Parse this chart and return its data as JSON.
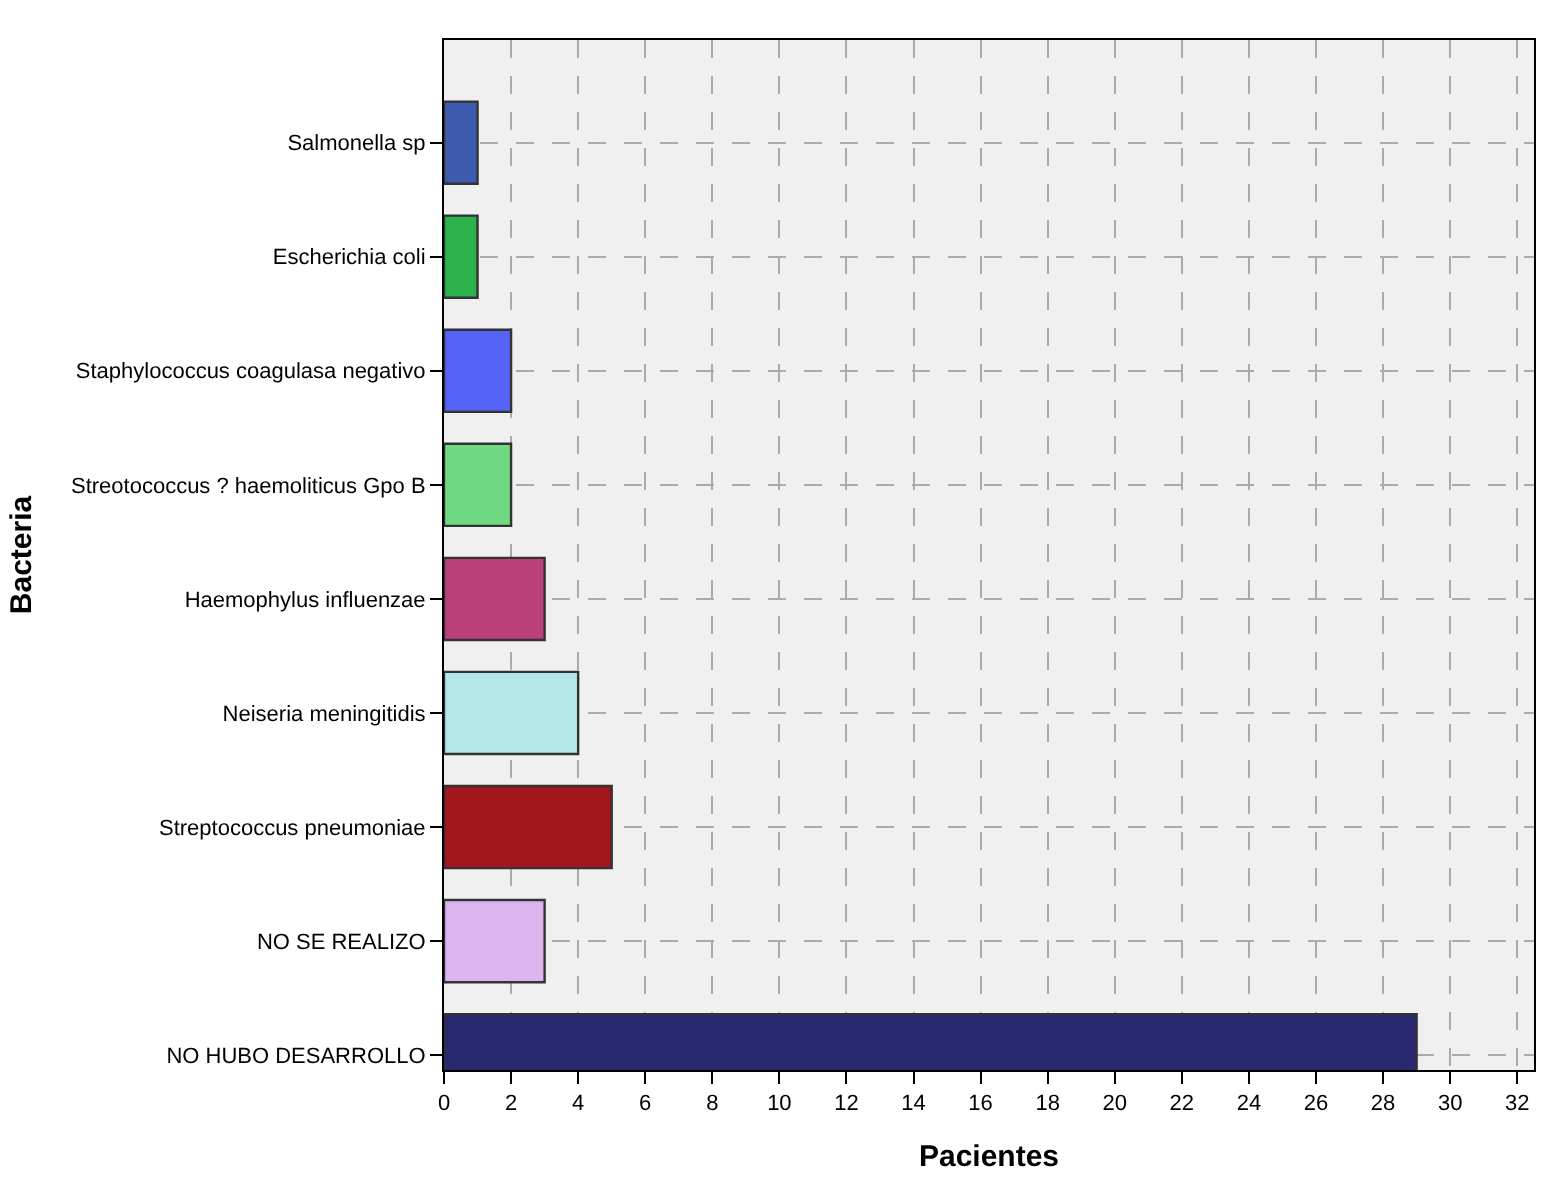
{
  "chart_data": {
    "type": "bar",
    "orientation": "horizontal",
    "xlabel": "Pacientes",
    "ylabel": "Bacteria",
    "categories": [
      "Salmonella sp",
      "Escherichia coli",
      "Staphylococcus coagulasa negativo",
      "Streotococcus ? haemoliticus Gpo B",
      "Haemophylus influenzae",
      "Neiseria meningitidis",
      "Streptococcus pneumoniae",
      "NO SE REALIZO",
      "NO HUBO DESARROLLO"
    ],
    "values": [
      1,
      1,
      2,
      2,
      3,
      4,
      5,
      3,
      29
    ],
    "colors": [
      "#3e5aae",
      "#2db34b",
      "#5663f7",
      "#6fda82",
      "#b94079",
      "#b3e6e6",
      "#a3161d",
      "#dcb5ef",
      "#28296f"
    ],
    "xlim": [
      0,
      32.5
    ],
    "xticks": [
      0,
      2,
      4,
      6,
      8,
      10,
      12,
      14,
      16,
      18,
      20,
      22,
      24,
      26,
      28,
      30,
      32
    ],
    "grid": true
  }
}
